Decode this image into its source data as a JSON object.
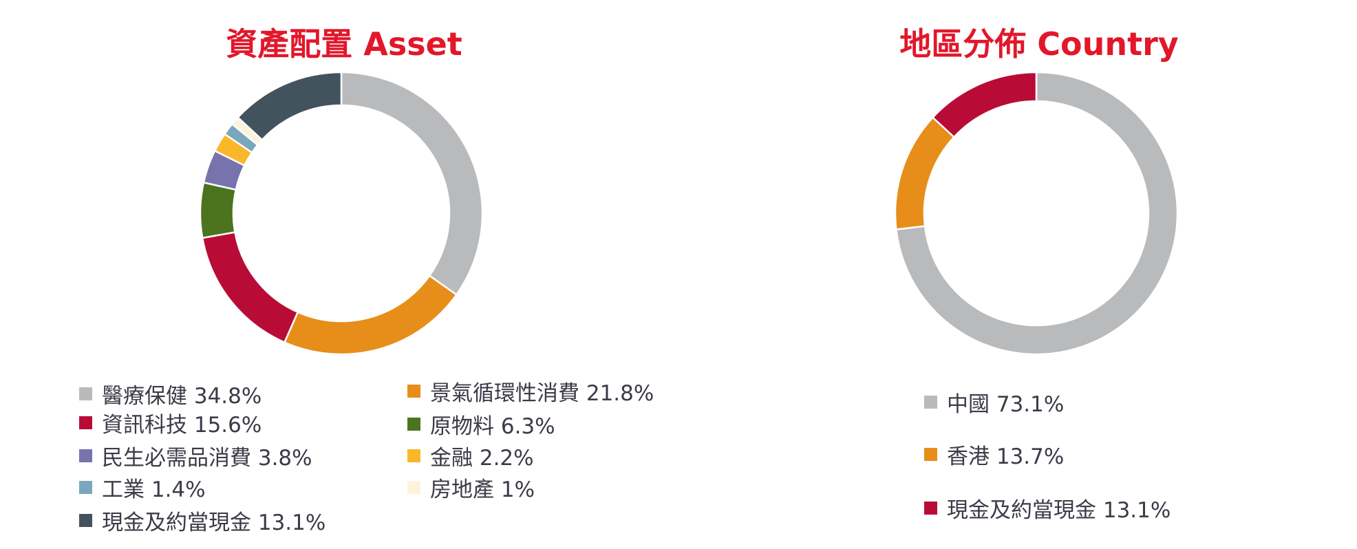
{
  "chart_data": [
    {
      "type": "pie",
      "title": "資產配置 Asset",
      "slices": [
        {
          "label": "醫療保健",
          "display": "醫療保健 34.8%",
          "value": 34.8,
          "color": "#b9babc"
        },
        {
          "label": "景氣循環性消費",
          "display": "景氣循環性消費 21.8%",
          "value": 21.8,
          "color": "#e78e1a"
        },
        {
          "label": "資訊科技",
          "display": "資訊科技 15.6%",
          "value": 15.6,
          "color": "#b80c37"
        },
        {
          "label": "原物料",
          "display": "原物料 6.3%",
          "value": 6.3,
          "color": "#4c731e"
        },
        {
          "label": "民生必需品消費",
          "display": "民生必需品消費 3.8%",
          "value": 3.8,
          "color": "#7872ad"
        },
        {
          "label": "金融",
          "display": "金融 2.2%",
          "value": 2.2,
          "color": "#fbb72a"
        },
        {
          "label": "工業",
          "display": "工業 1.4%",
          "value": 1.4,
          "color": "#7aa7bd"
        },
        {
          "label": "房地產",
          "display": "房地產 1%",
          "value": 1.0,
          "color": "#fdf3dc"
        },
        {
          "label": "現金及約當現金",
          "display": "現金及約當現金 13.1%",
          "value": 13.1,
          "color": "#43535e"
        }
      ]
    },
    {
      "type": "pie",
      "title": "地區分佈 Country",
      "slices": [
        {
          "label": "中國",
          "display": "中國 73.1%",
          "value": 73.1,
          "color": "#b9babc"
        },
        {
          "label": "香港",
          "display": "香港 13.7%",
          "value": 13.7,
          "color": "#e78e1a"
        },
        {
          "label": "現金及約當現金",
          "display": "現金及約當現金 13.1%",
          "value": 13.1,
          "color": "#b80c37"
        }
      ]
    }
  ]
}
